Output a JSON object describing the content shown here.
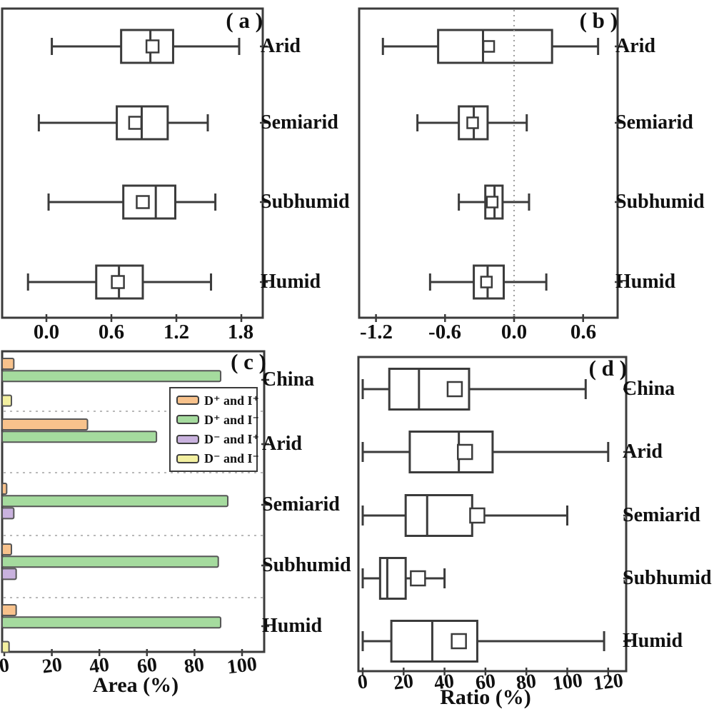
{
  "style": {
    "line_color": "#3b3b3b",
    "bar_border": "#565656",
    "grid_color": "#b9b9b9",
    "zero_line_color": "#a0a0a0",
    "text_color": "#101010",
    "background": "#ffffff"
  },
  "chart_data": [
    {
      "id": "a",
      "type": "boxplot",
      "orientation": "horizontal",
      "letter": "( a )",
      "xlabel": "",
      "xlim": [
        -0.43,
        2.0
      ],
      "xticks": [
        0.0,
        0.6,
        1.2,
        1.8
      ],
      "xtick_labels": [
        "0.0",
        "0.6",
        "1.2",
        "1.8"
      ],
      "categories": [
        "Arid",
        "Semiarid",
        "Subhumid",
        "Humid"
      ],
      "boxes": [
        {
          "category": "Arid",
          "whisker_low": 0.05,
          "q1": 0.69,
          "median": 0.96,
          "mean": 0.98,
          "q3": 1.17,
          "whisker_high": 1.78
        },
        {
          "category": "Semiarid",
          "whisker_low": -0.07,
          "q1": 0.65,
          "median": 0.88,
          "mean": 0.82,
          "q3": 1.12,
          "whisker_high": 1.49
        },
        {
          "category": "Subhumid",
          "whisker_low": 0.02,
          "q1": 0.71,
          "median": 1.01,
          "mean": 0.89,
          "q3": 1.19,
          "whisker_high": 1.56
        },
        {
          "category": "Humid",
          "whisker_low": -0.17,
          "q1": 0.46,
          "median": 0.67,
          "mean": 0.66,
          "q3": 0.89,
          "whisker_high": 1.52
        }
      ]
    },
    {
      "id": "b",
      "type": "boxplot",
      "orientation": "horizontal",
      "letter": "( b )",
      "xlabel": "",
      "xlim": [
        -1.35,
        0.9
      ],
      "xticks": [
        -1.2,
        -0.6,
        0.0,
        0.6
      ],
      "xtick_labels": [
        "-1.2",
        "-0.6",
        "0.0",
        "0.6"
      ],
      "zero_reference_line": 0.0,
      "categories": [
        "Arid",
        "Semiarid",
        "Subhumid",
        "Humid"
      ],
      "boxes": [
        {
          "category": "Arid",
          "whisker_low": -1.14,
          "q1": -0.66,
          "median": -0.27,
          "mean": -0.22,
          "q3": 0.33,
          "whisker_high": 0.73
        },
        {
          "category": "Semiarid",
          "whisker_low": -0.84,
          "q1": -0.48,
          "median": -0.35,
          "mean": -0.36,
          "q3": -0.23,
          "whisker_high": 0.11
        },
        {
          "category": "Subhumid",
          "whisker_low": -0.48,
          "q1": -0.25,
          "median": -0.17,
          "mean": -0.19,
          "q3": -0.1,
          "whisker_high": 0.13
        },
        {
          "category": "Humid",
          "whisker_low": -0.73,
          "q1": -0.35,
          "median": -0.23,
          "mean": -0.24,
          "q3": -0.09,
          "whisker_high": 0.28
        }
      ]
    },
    {
      "id": "c",
      "type": "bar",
      "orientation": "horizontal",
      "letter": "( c )",
      "xlabel": "Area (%)",
      "xlim": [
        0,
        108
      ],
      "xticks": [
        0,
        20,
        40,
        60,
        80,
        100
      ],
      "xtick_labels": [
        "0",
        "20",
        "40",
        "60",
        "80",
        "100"
      ],
      "categories": [
        "China",
        "Arid",
        "Semiarid",
        "Subhumid",
        "Humid"
      ],
      "legend": [
        {
          "label": "D⁺ and I⁺",
          "color": "#f8c28c"
        },
        {
          "label": "D⁺ and I⁻",
          "color": "#a5db9e"
        },
        {
          "label": "D⁻ and I⁺",
          "color": "#c9b2de"
        },
        {
          "label": "D⁻ and I⁻",
          "color": "#f3f0a0"
        }
      ],
      "series": [
        {
          "name": "D⁺ and I⁺",
          "color": "#f8c28c",
          "values": [
            4,
            35,
            1,
            3,
            5
          ]
        },
        {
          "name": "D⁺ and I⁻",
          "color": "#a5db9e",
          "values": [
            91,
            64,
            94,
            90,
            91
          ]
        },
        {
          "name": "D⁻ and I⁺",
          "color": "#c9b2de",
          "values": [
            0,
            0,
            4,
            5,
            0
          ]
        },
        {
          "name": "D⁻ and I⁻",
          "color": "#f3f0a0",
          "values": [
            3,
            0,
            0,
            0,
            2
          ]
        }
      ],
      "grid": "dotted horizontal separators between category groups"
    },
    {
      "id": "d",
      "type": "boxplot",
      "orientation": "horizontal",
      "letter": "( d )",
      "xlabel": "Ratio (%)",
      "xlim": [
        -5,
        130
      ],
      "xticks": [
        0,
        20,
        40,
        60,
        80,
        100,
        120
      ],
      "xtick_labels": [
        "0",
        "20",
        "40",
        "60",
        "80",
        "100",
        "120"
      ],
      "categories": [
        "China",
        "Arid",
        "Semiarid",
        "Subhumid",
        "Humid"
      ],
      "boxes": [
        {
          "category": "China",
          "whisker_low": 0,
          "q1": 13,
          "median": 27.5,
          "mean": 45,
          "q3": 52,
          "whisker_high": 109
        },
        {
          "category": "Arid",
          "whisker_low": 0,
          "q1": 23,
          "median": 47,
          "mean": 50,
          "q3": 63.5,
          "whisker_high": 120
        },
        {
          "category": "Semiarid",
          "whisker_low": 0,
          "q1": 21,
          "median": 31.5,
          "mean": 56,
          "q3": 53.5,
          "whisker_high": 100
        },
        {
          "category": "Subhumid",
          "whisker_low": 0,
          "q1": 8.5,
          "median": 12,
          "mean": 27,
          "q3": 21,
          "whisker_high": 40
        },
        {
          "category": "Humid",
          "whisker_low": 0,
          "q1": 14,
          "median": 34,
          "mean": 47,
          "q3": 56,
          "whisker_high": 118
        }
      ]
    }
  ]
}
